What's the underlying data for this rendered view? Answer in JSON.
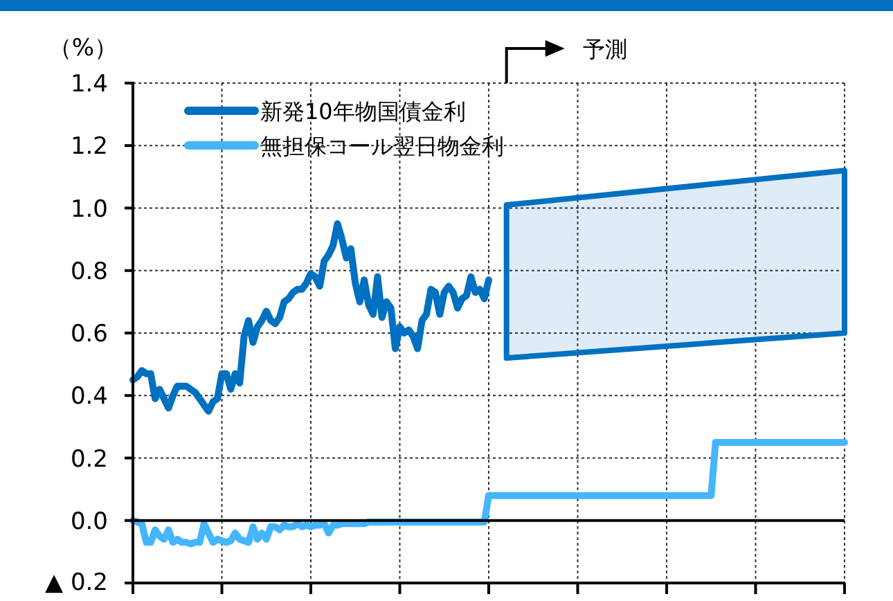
{
  "chart_data": {
    "type": "line",
    "ylabel": "（%）",
    "categories": [
      null,
      null,
      null,
      null,
      null,
      null,
      null,
      null,
      null,
      null,
      null,
      null,
      null,
      null,
      null,
      null,
      null,
      null,
      null,
      null,
      null,
      null,
      null,
      null,
      null,
      null,
      null,
      null,
      null,
      null,
      null,
      null,
      null,
      null,
      null,
      null,
      null,
      null,
      null,
      null,
      null,
      null,
      null,
      null,
      null,
      null,
      null,
      null,
      null,
      null,
      null,
      null,
      null,
      null,
      null,
      null,
      null,
      null,
      null,
      null,
      null,
      null,
      null,
      null,
      null,
      null,
      null,
      null,
      null,
      null,
      null,
      null,
      null,
      null,
      null,
      null,
      null,
      null,
      null,
      null,
      null,
      null,
      null,
      null,
      null,
      null,
      null,
      null,
      null,
      null,
      null,
      null,
      null,
      null,
      null,
      null,
      null,
      null,
      null,
      null,
      null,
      null,
      null,
      null,
      null,
      null,
      null,
      null,
      null,
      null,
      null,
      null,
      null,
      null,
      null,
      null,
      null,
      null,
      null,
      null,
      null,
      null,
      null,
      null,
      null,
      null,
      null,
      null,
      null,
      null,
      null,
      null,
      null,
      null,
      null,
      null,
      null,
      null,
      null,
      null,
      null,
      null,
      null,
      null,
      null,
      null,
      null,
      null,
      null,
      null,
      null,
      null,
      null,
      null,
      null,
      null,
      null,
      null,
      null,
      null,
      null
    ],
    "ylim": [
      -0.2,
      1.4
    ],
    "yticks": [
      {
        "value": -0.2,
        "label": "▲ 0.2"
      },
      {
        "value": 0,
        "label": "0.0"
      },
      {
        "value": 0.2,
        "label": "0.2"
      },
      {
        "value": 0.4,
        "label": "0.4"
      },
      {
        "value": 0.6,
        "label": "0.6"
      },
      {
        "value": 0.8,
        "label": "0.8"
      },
      {
        "value": 1.0,
        "label": "1.0"
      },
      {
        "value": 1.2,
        "label": "1.2"
      },
      {
        "value": 1.4,
        "label": "1.4"
      }
    ],
    "grid": true,
    "legend": "top left",
    "line_style": "solid",
    "marker": "none",
    "tick_labels": "y",
    "ref_lines": [
      {
        "axis": "y",
        "value": 0,
        "color": "#000000",
        "line_style": "solid"
      }
    ],
    "annotations": [
      "予測"
    ],
    "series": [
      {
        "name": "新発10年物国債金利",
        "color": "#0070c0",
        "values": [
          0.45,
          0.46,
          0.48,
          0.47,
          0.47,
          0.39,
          0.42,
          0.39,
          0.36,
          0.4,
          0.43,
          0.43,
          0.43,
          0.42,
          0.41,
          0.39,
          0.37,
          0.35,
          0.38,
          0.39,
          0.47,
          0.47,
          0.42,
          0.47,
          0.44,
          0.59,
          0.64,
          0.57,
          0.62,
          0.64,
          0.67,
          0.64,
          0.63,
          0.65,
          0.7,
          0.71,
          0.73,
          0.74,
          0.74,
          0.76,
          0.79,
          0.78,
          0.75,
          0.83,
          0.85,
          0.88,
          0.95,
          0.9,
          0.84,
          0.87,
          0.76,
          0.7,
          0.77,
          0.69,
          0.66,
          0.78,
          0.65,
          0.7,
          0.68,
          0.55,
          0.62,
          0.6,
          0.61,
          0.59,
          0.55,
          0.64,
          0.66,
          0.74,
          0.73,
          0.66,
          0.73,
          0.75,
          0.73,
          0.68,
          0.71,
          0.72,
          0.78,
          0.73,
          0.74,
          0.71,
          0.77,
          null,
          null,
          null,
          null,
          null,
          null,
          null,
          null,
          null,
          null,
          null,
          null,
          null,
          null,
          null,
          null,
          null,
          null,
          null,
          null,
          null,
          null,
          null,
          null,
          null,
          null,
          null,
          null,
          null,
          null,
          null,
          null,
          null,
          null,
          null,
          null,
          null,
          null,
          null,
          null,
          null,
          null,
          null,
          null,
          null,
          null,
          null,
          null,
          null,
          null,
          null,
          null,
          null,
          null,
          null,
          null,
          null,
          null,
          null,
          null,
          null,
          null,
          null,
          null,
          null,
          null,
          null,
          null,
          null,
          null,
          null,
          null,
          null,
          null,
          null,
          null,
          null,
          null,
          null,
          null
        ]
      },
      {
        "name": "無担保コール翌日物金利",
        "color": "#45b5ff",
        "values": [
          0,
          -0.005,
          -0.01,
          -0.07,
          -0.07,
          -0.03,
          -0.05,
          -0.06,
          -0.03,
          -0.07,
          -0.06,
          -0.07,
          -0.07,
          -0.075,
          -0.07,
          -0.07,
          -0.01,
          -0.04,
          -0.07,
          -0.06,
          -0.065,
          -0.07,
          -0.065,
          -0.04,
          -0.06,
          -0.065,
          -0.07,
          -0.02,
          -0.06,
          -0.04,
          -0.06,
          -0.02,
          -0.02,
          -0.03,
          -0.015,
          -0.02,
          -0.02,
          -0.01,
          -0.02,
          -0.015,
          -0.02,
          -0.015,
          -0.015,
          -0.01,
          -0.04,
          -0.015,
          -0.015,
          -0.01,
          -0.01,
          -0.01,
          -0.01,
          -0.01,
          -0.01,
          -0.005,
          -0.005,
          -0.005,
          -0.005,
          -0.005,
          -0.005,
          -0.005,
          -0.005,
          -0.005,
          -0.005,
          -0.005,
          -0.005,
          -0.005,
          -0.005,
          -0.005,
          -0.005,
          -0.005,
          -0.005,
          -0.005,
          -0.005,
          -0.005,
          -0.005,
          -0.005,
          -0.005,
          -0.005,
          -0.005,
          -0.005,
          0.08,
          0.08,
          0.08,
          0.08,
          0.08,
          0.08,
          0.08,
          0.08,
          0.08,
          0.08,
          0.08,
          0.08,
          0.08,
          0.08,
          0.08,
          0.08,
          0.08,
          0.08,
          0.08,
          0.08,
          0.08,
          0.08,
          0.08,
          0.08,
          0.08,
          0.08,
          0.08,
          0.08,
          0.08,
          0.08,
          0.08,
          0.08,
          0.08,
          0.08,
          0.08,
          0.08,
          0.08,
          0.08,
          0.08,
          0.08,
          0.08,
          0.08,
          0.08,
          0.08,
          0.08,
          0.08,
          0.08,
          0.08,
          0.08,
          0.08,
          0.08,
          0.25,
          0.25,
          0.25,
          0.25,
          0.25,
          0.25,
          0.25,
          0.25,
          0.25,
          0.25,
          0.25,
          0.25,
          0.25,
          0.25,
          0.25,
          0.25,
          0.25,
          0.25,
          0.25,
          0.25,
          0.25,
          0.25,
          0.25,
          0.25,
          0.25,
          0.25,
          0.25,
          0.25,
          0.25,
          0.25
        ]
      },
      {
        "type": "area",
        "color": "#0070c0",
        "lower": [
          null,
          null,
          null,
          null,
          null,
          null,
          null,
          null,
          null,
          null,
          null,
          null,
          null,
          null,
          null,
          null,
          null,
          null,
          null,
          null,
          null,
          null,
          null,
          null,
          null,
          null,
          null,
          null,
          null,
          null,
          null,
          null,
          null,
          null,
          null,
          null,
          null,
          null,
          null,
          null,
          null,
          null,
          null,
          null,
          null,
          null,
          null,
          null,
          null,
          null,
          null,
          null,
          null,
          null,
          null,
          null,
          null,
          null,
          null,
          null,
          null,
          null,
          null,
          null,
          null,
          null,
          null,
          null,
          null,
          null,
          null,
          null,
          null,
          null,
          null,
          null,
          null,
          null,
          null,
          null,
          null,
          null,
          null,
          null,
          0.52,
          null,
          null,
          null,
          null,
          null,
          null,
          null,
          null,
          null,
          null,
          null,
          null,
          null,
          null,
          null,
          null,
          null,
          null,
          null,
          null,
          null,
          null,
          null,
          null,
          null,
          null,
          null,
          null,
          null,
          null,
          null,
          null,
          null,
          null,
          null,
          null,
          null,
          null,
          null,
          null,
          null,
          null,
          null,
          null,
          null,
          null,
          null,
          null,
          null,
          null,
          null,
          null,
          null,
          null,
          null,
          null,
          null,
          null,
          null,
          null,
          null,
          null,
          null,
          null,
          null,
          null,
          null,
          null,
          null,
          null,
          null,
          null,
          null,
          null,
          null,
          0.6
        ],
        "upper": [
          null,
          null,
          null,
          null,
          null,
          null,
          null,
          null,
          null,
          null,
          null,
          null,
          null,
          null,
          null,
          null,
          null,
          null,
          null,
          null,
          null,
          null,
          null,
          null,
          null,
          null,
          null,
          null,
          null,
          null,
          null,
          null,
          null,
          null,
          null,
          null,
          null,
          null,
          null,
          null,
          null,
          null,
          null,
          null,
          null,
          null,
          null,
          null,
          null,
          null,
          null,
          null,
          null,
          null,
          null,
          null,
          null,
          null,
          null,
          null,
          null,
          null,
          null,
          null,
          null,
          null,
          null,
          null,
          null,
          null,
          null,
          null,
          null,
          null,
          null,
          null,
          null,
          null,
          null,
          null,
          null,
          null,
          null,
          null,
          1.01,
          null,
          null,
          null,
          null,
          null,
          null,
          null,
          null,
          null,
          null,
          null,
          null,
          null,
          null,
          null,
          null,
          null,
          null,
          null,
          null,
          null,
          null,
          null,
          null,
          null,
          null,
          null,
          null,
          null,
          null,
          null,
          null,
          null,
          null,
          null,
          null,
          null,
          null,
          null,
          null,
          null,
          null,
          null,
          null,
          null,
          null,
          null,
          null,
          null,
          null,
          null,
          null,
          null,
          null,
          null,
          null,
          null,
          null,
          null,
          null,
          null,
          null,
          null,
          null,
          null,
          null,
          null,
          null,
          null,
          null,
          null,
          null,
          null,
          null,
          null,
          1.12
        ],
        "values": [
          null,
          null,
          null,
          null,
          null,
          null,
          null,
          null,
          null,
          null,
          null,
          null,
          null,
          null,
          null,
          null,
          null,
          null,
          null,
          null,
          null,
          null,
          null,
          null,
          null,
          null,
          null,
          null,
          null,
          null,
          null,
          null,
          null,
          null,
          null,
          null,
          null,
          null,
          null,
          null,
          null,
          null,
          null,
          null,
          null,
          null,
          null,
          null,
          null,
          null,
          null,
          null,
          null,
          null,
          null,
          null,
          null,
          null,
          null,
          null,
          null,
          null,
          null,
          null,
          null,
          null,
          null,
          null,
          null,
          null,
          null,
          null,
          null,
          null,
          null,
          null,
          null,
          null,
          null,
          null,
          null,
          null,
          null,
          null,
          null,
          null,
          null,
          null,
          null,
          null,
          null,
          null,
          null,
          null,
          null,
          null,
          null,
          null,
          null,
          null,
          null,
          null,
          null,
          null,
          null,
          null,
          null,
          null,
          null,
          null,
          null,
          null,
          null,
          null,
          null,
          null,
          null,
          null,
          null,
          null,
          null,
          null,
          null,
          null,
          null,
          null,
          null,
          null,
          null,
          null,
          null,
          null,
          null,
          null,
          null,
          null,
          null,
          null,
          null,
          null,
          null,
          null,
          null,
          null,
          null,
          null,
          null,
          null,
          null,
          null,
          null,
          null,
          null,
          null,
          null,
          null,
          null,
          null,
          null,
          null,
          null
        ]
      }
    ]
  }
}
